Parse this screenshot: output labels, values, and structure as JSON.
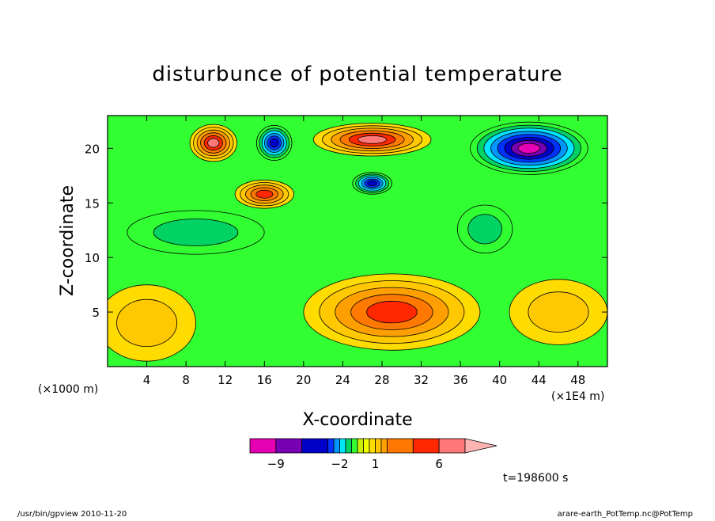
{
  "chart_data": {
    "type": "heatmap",
    "title": "disturbunce of potential temperature",
    "xlabel": "X-coordinate",
    "ylabel": "Z-coordinate",
    "x_unit_left": "(×1000 m)",
    "x_unit_right": "(×1E4 m)",
    "xlim": [
      0,
      51
    ],
    "ylim": [
      0,
      23
    ],
    "x_ticks": [
      4,
      8,
      12,
      16,
      20,
      24,
      28,
      32,
      36,
      40,
      44,
      48
    ],
    "y_ticks": [
      5,
      10,
      15,
      20
    ],
    "time_label": "t=198600 s",
    "colorbar": {
      "tick_labels": [
        "−9",
        "−2",
        "1",
        "6"
      ],
      "levels": [
        -12,
        -9,
        -6,
        -3,
        -2.5,
        -2,
        -1.5,
        -1,
        -0.5,
        0,
        0.5,
        1,
        1.5,
        2,
        3,
        6,
        9,
        12
      ],
      "colors": [
        "#e600b4",
        "#7800b4",
        "#0000c8",
        "#0032ff",
        "#0096ff",
        "#00e6ff",
        "#00d264",
        "#32ff32",
        "#c8f000",
        "#f0ff00",
        "#ffdc00",
        "#ffc800",
        "#ffa000",
        "#ff7800",
        "#ff2800",
        "#ff7878",
        "#ffb4b4"
      ]
    },
    "features": [
      {
        "kind": "warm",
        "x": 10.8,
        "z": 20.5,
        "rx": 2.4,
        "rz": 1.7,
        "peak": 6
      },
      {
        "kind": "warm",
        "x": 27.0,
        "z": 20.8,
        "rx": 6.0,
        "rz": 1.5,
        "peak": 6
      },
      {
        "kind": "warm",
        "x": 16.0,
        "z": 15.8,
        "rx": 3.0,
        "rz": 1.3,
        "peak": 3
      },
      {
        "kind": "cold",
        "x": 17.0,
        "z": 20.5,
        "rx": 1.8,
        "rz": 1.6,
        "peak": -3
      },
      {
        "kind": "cold",
        "x": 27.0,
        "z": 16.8,
        "rx": 2.0,
        "rz": 1.0,
        "peak": -3
      },
      {
        "kind": "cold",
        "x": 43.0,
        "z": 20.0,
        "rx": 6.0,
        "rz": 2.4,
        "peak": -9
      },
      {
        "kind": "cool",
        "x": 9.0,
        "z": 12.3,
        "rx": 7.0,
        "rz": 2.0,
        "peak": -1
      },
      {
        "kind": "cool",
        "x": 38.5,
        "z": 12.6,
        "rx": 2.8,
        "rz": 2.2,
        "peak": -1
      },
      {
        "kind": "warm",
        "x": 4.0,
        "z": 4.0,
        "rx": 5.0,
        "rz": 3.5,
        "peak": 1
      },
      {
        "kind": "warm",
        "x": 29.0,
        "z": 5.0,
        "rx": 9.0,
        "rz": 3.5,
        "peak": 3
      },
      {
        "kind": "warm",
        "x": 46.0,
        "z": 5.0,
        "rx": 5.0,
        "rz": 3.0,
        "peak": 1
      }
    ]
  },
  "footer": {
    "left": "/usr/bin/gpview  2010-11-20",
    "right": "arare-earth_PotTemp.nc@PotTemp"
  }
}
